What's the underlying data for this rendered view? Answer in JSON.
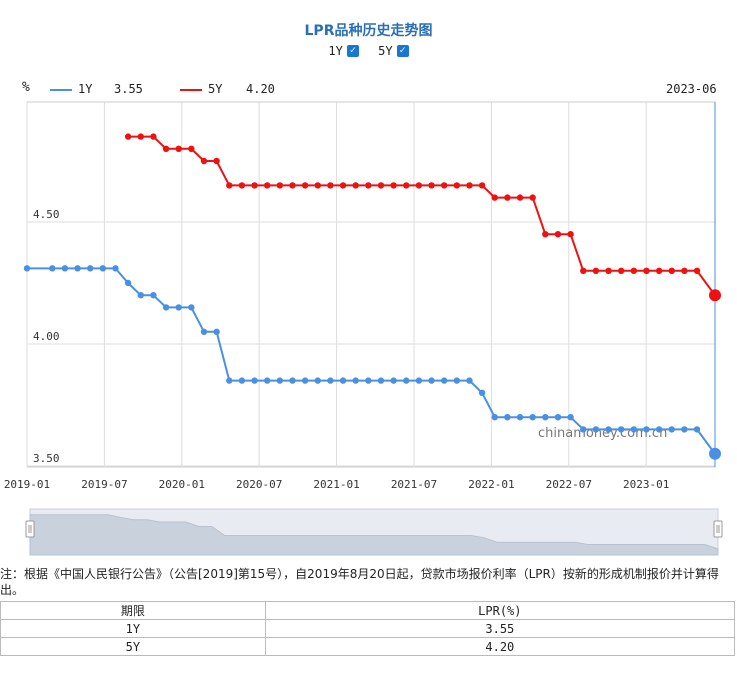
{
  "title": "LPR品种历史走势图",
  "toggles": [
    {
      "label": "1Y",
      "checked": true
    },
    {
      "label": "5Y",
      "checked": true
    }
  ],
  "legend": {
    "unit": "%",
    "items": [
      {
        "name": "1Y",
        "value": "3.55",
        "color": "#4a90e2"
      },
      {
        "name": "5Y",
        "value": "4.20",
        "color": "#ee1111"
      }
    ],
    "current_date": "2023-06"
  },
  "chart_data": {
    "type": "line",
    "x_ticks": [
      "2019-01",
      "2019-07",
      "2020-01",
      "2020-07",
      "2021-01",
      "2021-07",
      "2022-01",
      "2022-07",
      "2023-01"
    ],
    "y_ticks": [
      "3.50",
      "4.00",
      "4.50"
    ],
    "ylim": [
      3.5,
      5.0
    ],
    "grid": true,
    "watermark": "chinamoney.com.cn",
    "series": [
      {
        "name": "1Y",
        "color": "#4a90e2",
        "values": [
          4.31,
          4.31,
          4.31,
          4.31,
          4.31,
          4.31,
          4.31,
          4.25,
          4.2,
          4.2,
          4.15,
          4.15,
          4.15,
          4.05,
          4.05,
          3.85,
          3.85,
          3.85,
          3.85,
          3.85,
          3.85,
          3.85,
          3.85,
          3.85,
          3.85,
          3.85,
          3.85,
          3.85,
          3.85,
          3.85,
          3.85,
          3.85,
          3.85,
          3.85,
          3.85,
          3.8,
          3.7,
          3.7,
          3.7,
          3.7,
          3.7,
          3.7,
          3.7,
          3.65,
          3.65,
          3.65,
          3.65,
          3.65,
          3.65,
          3.65,
          3.65,
          3.65,
          3.65,
          3.55
        ]
      },
      {
        "name": "5Y",
        "color": "#ee1111",
        "values": [
          null,
          null,
          null,
          null,
          null,
          null,
          null,
          4.85,
          4.85,
          4.85,
          4.8,
          4.8,
          4.8,
          4.75,
          4.75,
          4.65,
          4.65,
          4.65,
          4.65,
          4.65,
          4.65,
          4.65,
          4.65,
          4.65,
          4.65,
          4.65,
          4.65,
          4.65,
          4.65,
          4.65,
          4.65,
          4.65,
          4.65,
          4.65,
          4.65,
          4.65,
          4.6,
          4.6,
          4.6,
          4.6,
          4.45,
          4.45,
          4.45,
          4.3,
          4.3,
          4.3,
          4.3,
          4.3,
          4.3,
          4.3,
          4.3,
          4.3,
          4.3,
          4.2
        ]
      }
    ]
  },
  "note": "注：根据《中国人民银行公告》（公告[2019]第15号），自2019年8月20日起，贷款市场报价利率（LPR）按新的形成机制报价并计算得出。",
  "table": {
    "headers": [
      "期限",
      "LPR(%)"
    ],
    "rows": [
      [
        "1Y",
        "3.55"
      ],
      [
        "5Y",
        "4.20"
      ]
    ]
  }
}
